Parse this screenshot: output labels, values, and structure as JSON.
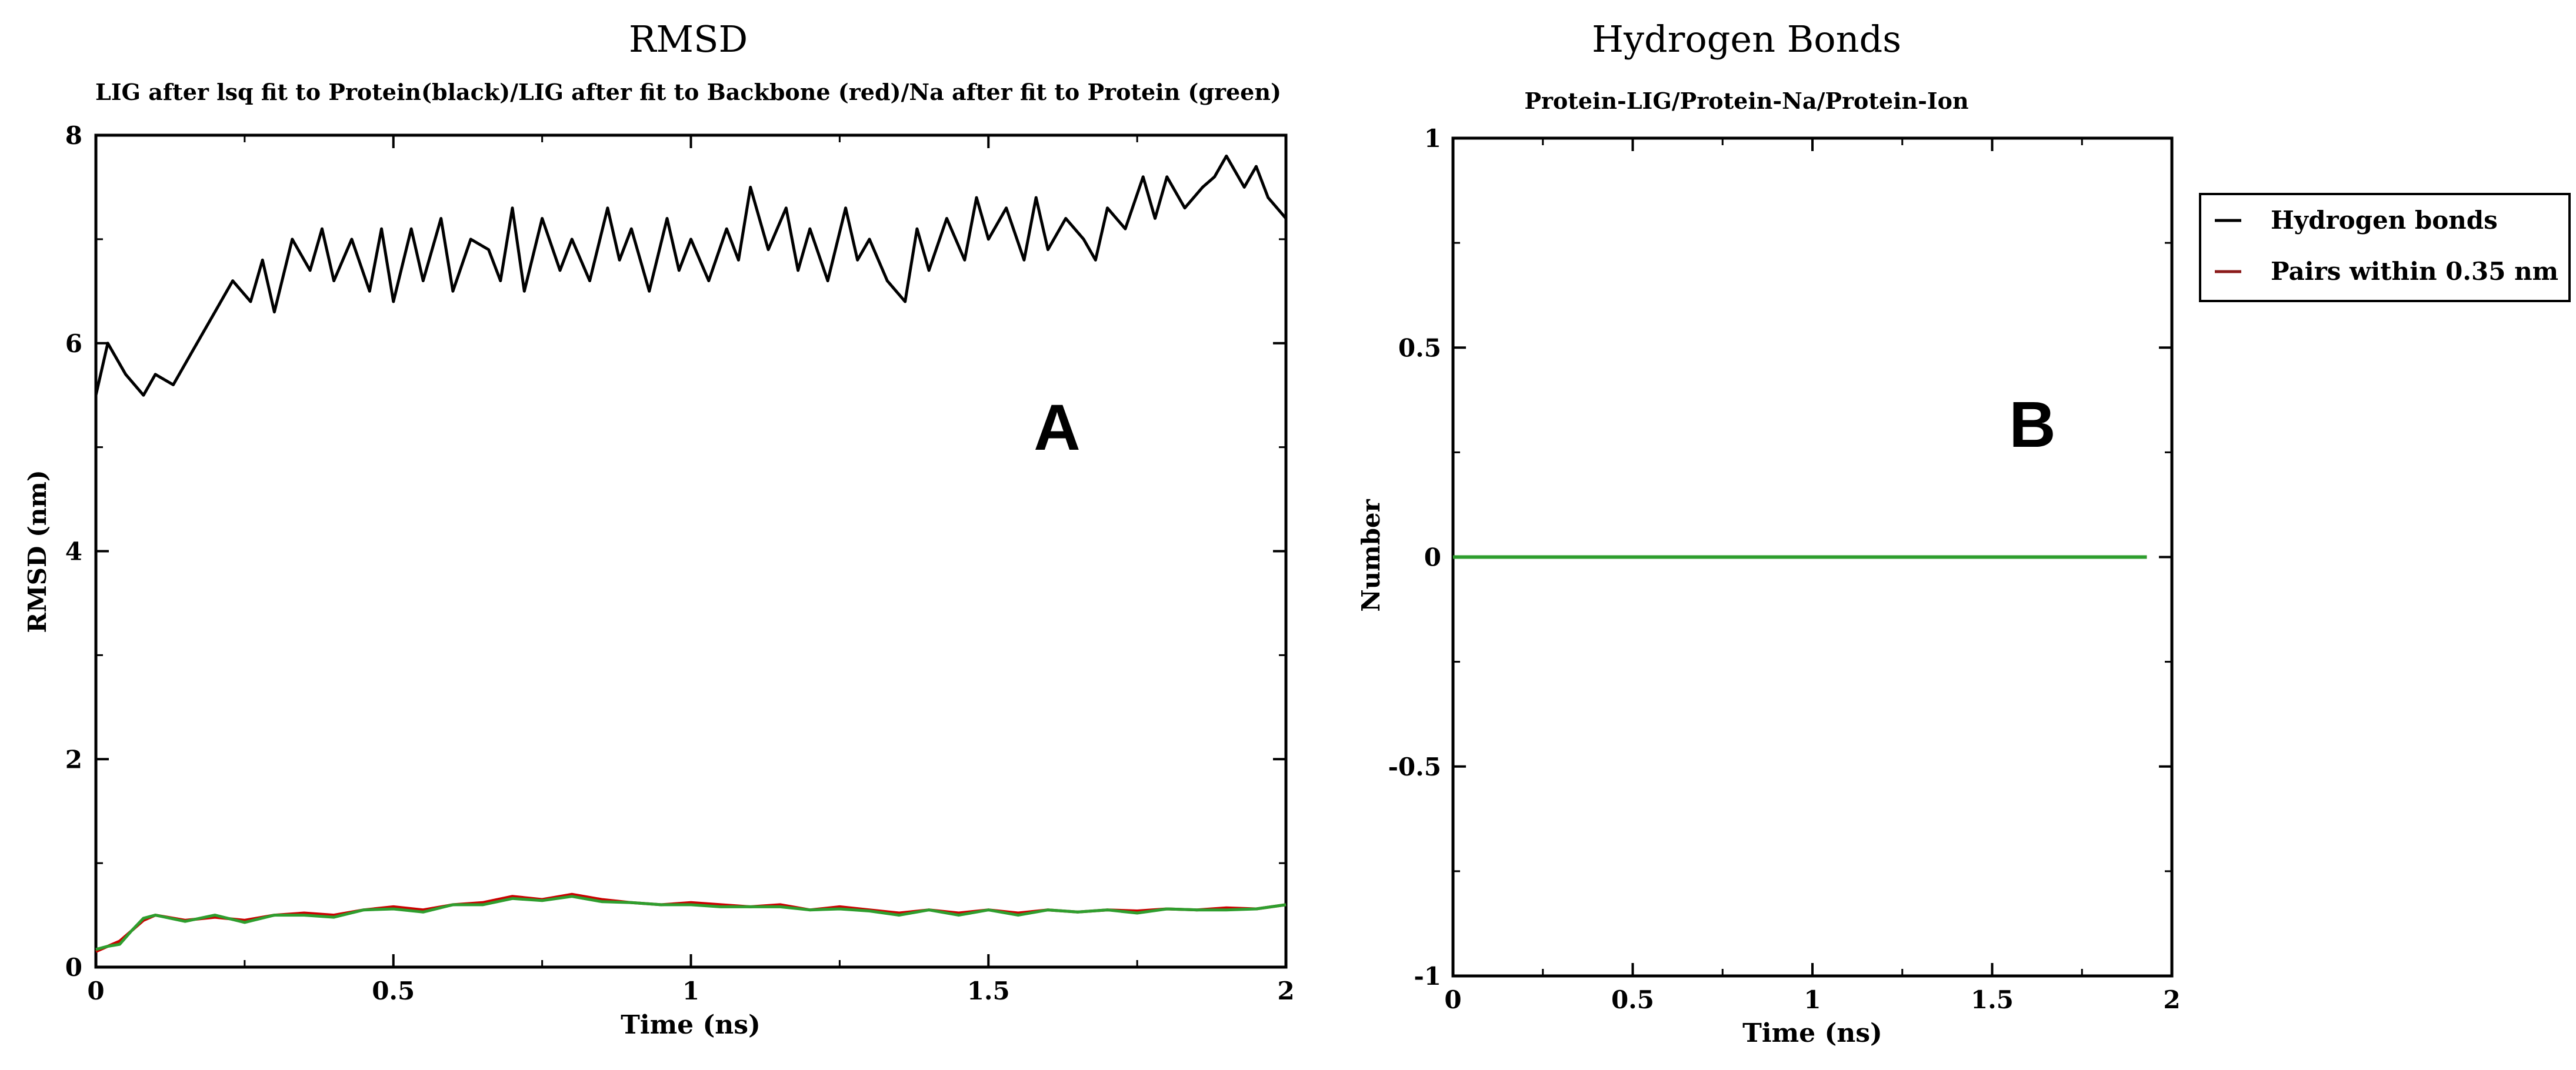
{
  "chart_data": [
    {
      "panel_letter": "A",
      "type": "line",
      "title": "RMSD",
      "subtitle": "LIG after lsq fit to Protein(black)/LIG after fit to Backbone (red)/Na after fit to Protein (green)",
      "xlabel": "Time (ns)",
      "ylabel": "RMSD (nm)",
      "xlim": [
        0,
        2
      ],
      "ylim": [
        0,
        8
      ],
      "xticks": [
        0,
        0.5,
        1,
        1.5,
        2
      ],
      "xtick_labels": [
        "0",
        "0.5",
        "1",
        "1.5",
        "2"
      ],
      "yticks": [
        0,
        2,
        4,
        6,
        8
      ],
      "ytick_labels": [
        "0",
        "2",
        "4",
        "6",
        "8"
      ],
      "grid": false,
      "series": [
        {
          "name": "LIG after lsq fit to Protein",
          "color": "#000000",
          "x": [
            0,
            0.02,
            0.05,
            0.08,
            0.1,
            0.13,
            0.16,
            0.2,
            0.23,
            0.26,
            0.28,
            0.3,
            0.33,
            0.36,
            0.38,
            0.4,
            0.43,
            0.46,
            0.48,
            0.5,
            0.53,
            0.55,
            0.58,
            0.6,
            0.63,
            0.66,
            0.68,
            0.7,
            0.72,
            0.75,
            0.78,
            0.8,
            0.83,
            0.86,
            0.88,
            0.9,
            0.93,
            0.96,
            0.98,
            1.0,
            1.03,
            1.06,
            1.08,
            1.1,
            1.13,
            1.16,
            1.18,
            1.2,
            1.23,
            1.26,
            1.28,
            1.3,
            1.33,
            1.36,
            1.38,
            1.4,
            1.43,
            1.46,
            1.48,
            1.5,
            1.53,
            1.56,
            1.58,
            1.6,
            1.63,
            1.66,
            1.68,
            1.7,
            1.73,
            1.76,
            1.78,
            1.8,
            1.83,
            1.86,
            1.88,
            1.9,
            1.93,
            1.95,
            1.97,
            2.0
          ],
          "y": [
            5.5,
            6.0,
            5.7,
            5.5,
            5.7,
            5.6,
            5.9,
            6.3,
            6.6,
            6.4,
            6.8,
            6.3,
            7.0,
            6.7,
            7.1,
            6.6,
            7.0,
            6.5,
            7.1,
            6.4,
            7.1,
            6.6,
            7.2,
            6.5,
            7.0,
            6.9,
            6.6,
            7.3,
            6.5,
            7.2,
            6.7,
            7.0,
            6.6,
            7.3,
            6.8,
            7.1,
            6.5,
            7.2,
            6.7,
            7.0,
            6.6,
            7.1,
            6.8,
            7.5,
            6.9,
            7.3,
            6.7,
            7.1,
            6.6,
            7.3,
            6.8,
            7.0,
            6.6,
            6.4,
            7.1,
            6.7,
            7.2,
            6.8,
            7.4,
            7.0,
            7.3,
            6.8,
            7.4,
            6.9,
            7.2,
            7.0,
            6.8,
            7.3,
            7.1,
            7.6,
            7.2,
            7.6,
            7.3,
            7.5,
            7.6,
            7.8,
            7.5,
            7.7,
            7.4,
            7.2
          ]
        },
        {
          "name": "LIG after fit to Backbone",
          "color": "#cc0000",
          "x": [
            0,
            0.02,
            0.04,
            0.06,
            0.08,
            0.1,
            0.15,
            0.2,
            0.25,
            0.3,
            0.35,
            0.4,
            0.45,
            0.5,
            0.55,
            0.6,
            0.65,
            0.7,
            0.75,
            0.8,
            0.85,
            0.9,
            0.95,
            1.0,
            1.05,
            1.1,
            1.15,
            1.2,
            1.25,
            1.3,
            1.35,
            1.4,
            1.45,
            1.5,
            1.55,
            1.6,
            1.65,
            1.7,
            1.75,
            1.8,
            1.85,
            1.9,
            1.95,
            2.0
          ],
          "y": [
            0.15,
            0.2,
            0.25,
            0.35,
            0.45,
            0.5,
            0.45,
            0.48,
            0.45,
            0.5,
            0.52,
            0.5,
            0.55,
            0.58,
            0.55,
            0.6,
            0.62,
            0.68,
            0.65,
            0.7,
            0.65,
            0.62,
            0.6,
            0.62,
            0.6,
            0.58,
            0.6,
            0.55,
            0.58,
            0.55,
            0.52,
            0.55,
            0.52,
            0.55,
            0.52,
            0.55,
            0.53,
            0.55,
            0.54,
            0.56,
            0.55,
            0.57,
            0.56,
            0.6
          ]
        },
        {
          "name": "Na after fit to Protein",
          "color": "#2e9e2e",
          "x": [
            0,
            0.02,
            0.04,
            0.06,
            0.08,
            0.1,
            0.15,
            0.2,
            0.25,
            0.3,
            0.35,
            0.4,
            0.45,
            0.5,
            0.55,
            0.6,
            0.65,
            0.7,
            0.75,
            0.8,
            0.85,
            0.9,
            0.95,
            1.0,
            1.05,
            1.1,
            1.15,
            1.2,
            1.25,
            1.3,
            1.35,
            1.4,
            1.45,
            1.5,
            1.55,
            1.6,
            1.65,
            1.7,
            1.75,
            1.8,
            1.85,
            1.9,
            1.95,
            2.0
          ],
          "y": [
            0.17,
            0.2,
            0.22,
            0.35,
            0.47,
            0.5,
            0.44,
            0.5,
            0.43,
            0.5,
            0.5,
            0.48,
            0.55,
            0.56,
            0.53,
            0.6,
            0.6,
            0.66,
            0.64,
            0.68,
            0.63,
            0.62,
            0.6,
            0.6,
            0.58,
            0.58,
            0.58,
            0.55,
            0.56,
            0.54,
            0.5,
            0.55,
            0.5,
            0.55,
            0.5,
            0.55,
            0.53,
            0.55,
            0.52,
            0.56,
            0.55,
            0.55,
            0.56,
            0.6
          ]
        }
      ]
    },
    {
      "panel_letter": "B",
      "type": "line",
      "title": "Hydrogen Bonds",
      "subtitle": "Protein-LIG/Protein-Na/Protein-Ion",
      "xlabel": "Time (ns)",
      "ylabel": "Number",
      "xlim": [
        0,
        2
      ],
      "ylim": [
        -1,
        1
      ],
      "xticks": [
        0,
        0.5,
        1,
        1.5,
        2
      ],
      "xtick_labels": [
        "0",
        "0.5",
        "1",
        "1.5",
        "2"
      ],
      "yticks": [
        -1,
        -0.5,
        0,
        0.5,
        1
      ],
      "ytick_labels": [
        "-1",
        "-0.5",
        "0",
        "0.5",
        "1"
      ],
      "grid": false,
      "legend": [
        {
          "label": "Hydrogen bonds",
          "color": "#000000"
        },
        {
          "label": "Pairs within 0.35 nm",
          "color": "#8b1a1a"
        }
      ],
      "legend_position": "outside-right",
      "series": [
        {
          "name": "Hydrogen bonds",
          "color": "#000000",
          "x": [
            0,
            1.93
          ],
          "y": [
            0,
            0
          ]
        },
        {
          "name": "Pairs within 0.35 nm",
          "color": "#8b1a1a",
          "x": [
            0,
            1.93
          ],
          "y": [
            0,
            0
          ]
        },
        {
          "name": "Protein-Ion",
          "color": "#2e9e2e",
          "x": [
            0,
            1.93
          ],
          "y": [
            0,
            0
          ]
        }
      ]
    }
  ]
}
